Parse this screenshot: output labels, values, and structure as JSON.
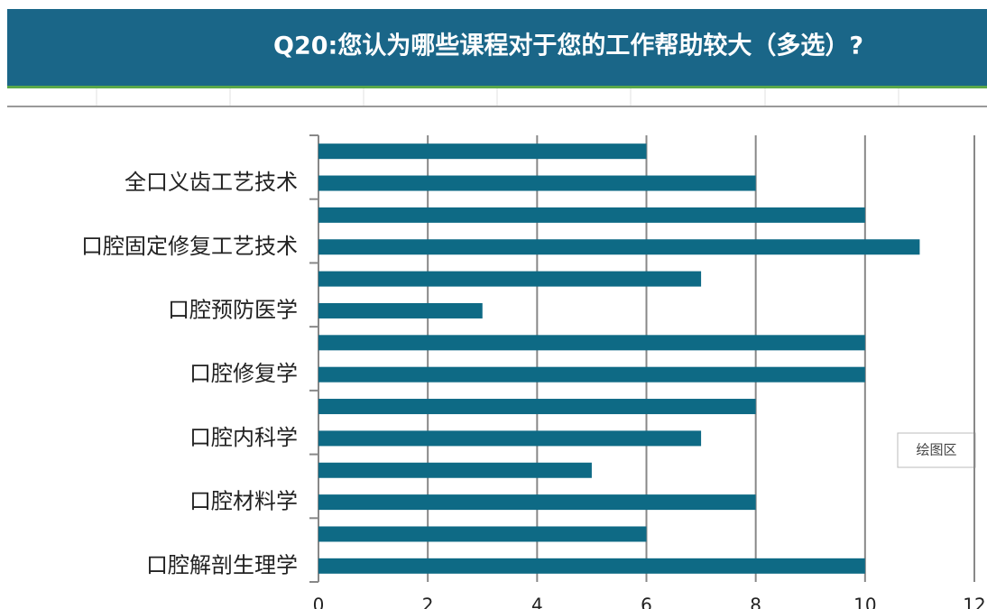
{
  "chart_data": {
    "type": "hbar",
    "title": "Q20:您认为哪些课程对于您的工作帮助较大（多选）?",
    "categories": [
      null,
      "全口义齿工艺技术",
      null,
      "口腔固定修复工艺技术",
      null,
      "口腔预防医学",
      null,
      "口腔修复学",
      null,
      "口腔内科学",
      null,
      "口腔材料学",
      null,
      "口腔解剖生理学"
    ],
    "values": [
      6,
      8,
      10,
      11,
      7,
      3,
      10,
      10,
      8,
      7,
      5,
      8,
      6,
      10
    ],
    "color": "#0e6a85",
    "xlim": [
      0,
      12
    ],
    "xticks": [
      0,
      2,
      4,
      6,
      8,
      10,
      12
    ],
    "grid": true,
    "tooltip": "绘图区"
  }
}
